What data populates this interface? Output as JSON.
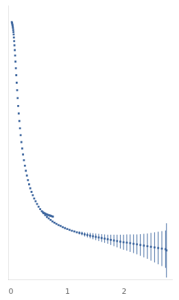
{
  "chart_data": {
    "type": "scatter",
    "xlim": [
      -0.05,
      2.85
    ],
    "ylim": [
      -0.3,
      8.8
    ],
    "xticks": [
      0,
      1,
      2
    ],
    "yticks": [
      2,
      4,
      6,
      8
    ],
    "grid": false,
    "tick_labels": "x",
    "color": "#4169a0",
    "series": [
      {
        "marker": "square",
        "x": [
          0.013,
          0.018,
          0.022,
          0.026,
          0.03,
          0.034,
          0.038,
          0.042,
          0.046,
          0.05,
          0.055,
          0.06,
          0.066,
          0.072,
          0.078,
          0.085,
          0.092,
          0.1,
          0.108,
          0.117,
          0.126,
          0.136,
          0.147,
          0.158,
          0.17,
          0.183,
          0.197,
          0.212,
          0.228,
          0.245,
          0.262,
          0.28,
          0.299,
          0.319,
          0.34,
          0.362,
          0.385,
          0.409,
          0.434,
          0.46,
          0.487,
          0.515,
          0.544,
          0.573,
          0.604,
          0.635,
          0.667,
          0.7,
          0.733,
          0.768,
          0.803,
          0.84,
          0.877,
          0.915,
          0.954,
          0.994,
          1.035,
          1.077,
          1.12,
          1.164,
          1.209,
          1.255,
          1.302,
          1.35,
          1.399,
          1.449,
          1.499,
          1.551,
          1.603,
          1.656,
          1.71,
          1.765,
          1.82,
          1.876,
          1.933,
          1.99,
          2.048,
          2.107,
          2.167,
          2.227,
          2.288,
          2.35,
          2.412,
          2.475,
          2.539,
          2.603,
          2.668,
          2.733,
          2.75
        ],
        "values": [
          8.25,
          8.22,
          8.18,
          8.15,
          8.1,
          8.05,
          7.99,
          7.92,
          7.84,
          7.74,
          7.62,
          7.48,
          7.32,
          7.14,
          6.94,
          6.72,
          6.49,
          6.24,
          5.99,
          5.73,
          5.47,
          5.22,
          4.97,
          4.73,
          4.5,
          4.27,
          4.06,
          3.86,
          3.67,
          3.49,
          3.32,
          3.16,
          3.01,
          2.87,
          2.74,
          2.62,
          2.51,
          2.4,
          2.31,
          2.22,
          2.13,
          2.05,
          1.98,
          1.91,
          1.85,
          1.79,
          1.74,
          1.69,
          1.64,
          1.6,
          1.56,
          1.52,
          1.49,
          1.45,
          1.42,
          1.39,
          1.36,
          1.33,
          1.31,
          1.28,
          1.26,
          1.24,
          1.21,
          1.19,
          1.17,
          1.15,
          1.13,
          1.11,
          1.09,
          1.07,
          1.05,
          1.03,
          1.01,
          0.99,
          0.97,
          0.95,
          0.94,
          0.92,
          0.9,
          0.88,
          0.86,
          0.84,
          0.82,
          0.8,
          0.78,
          0.76,
          0.74,
          0.72,
          0.68
        ],
        "err": [
          0.0,
          0.0,
          0.0,
          0.0,
          0.0,
          0.0,
          0.0,
          0.0,
          0.0,
          0.0,
          0.0,
          0.0,
          0.0,
          0.0,
          0.0,
          0.0,
          0.0,
          0.0,
          0.0,
          0.0,
          0.0,
          0.0,
          0.0,
          0.0,
          0.0,
          0.0,
          0.0,
          0.0,
          0.0,
          0.0,
          0.0,
          0.0,
          0.0,
          0.0,
          0.0,
          0.0,
          0.0,
          0.0,
          0.0,
          0.0,
          0.0,
          0.0,
          0.0,
          0.0,
          0.0,
          0.0,
          0.0,
          0.0,
          0.0,
          0.0,
          0.0,
          0.0,
          0.0,
          0.0,
          0.0,
          0.0,
          0.0,
          0.0,
          0.0,
          0.0,
          0.05,
          0.06,
          0.07,
          0.08,
          0.09,
          0.1,
          0.11,
          0.12,
          0.13,
          0.14,
          0.15,
          0.17,
          0.19,
          0.21,
          0.23,
          0.25,
          0.27,
          0.29,
          0.31,
          0.33,
          0.36,
          0.39,
          0.42,
          0.46,
          0.5,
          0.54,
          0.58,
          0.62,
          0.9
        ]
      },
      {
        "marker": "square",
        "x": [
          0.56,
          0.575,
          0.59,
          0.605,
          0.62,
          0.635,
          0.65,
          0.665,
          0.68,
          0.695,
          0.71,
          0.725,
          0.74
        ],
        "values": [
          1.95,
          1.93,
          1.91,
          1.9,
          1.88,
          1.87,
          1.86,
          1.85,
          1.84,
          1.83,
          1.82,
          1.81,
          1.8
        ]
      }
    ]
  }
}
